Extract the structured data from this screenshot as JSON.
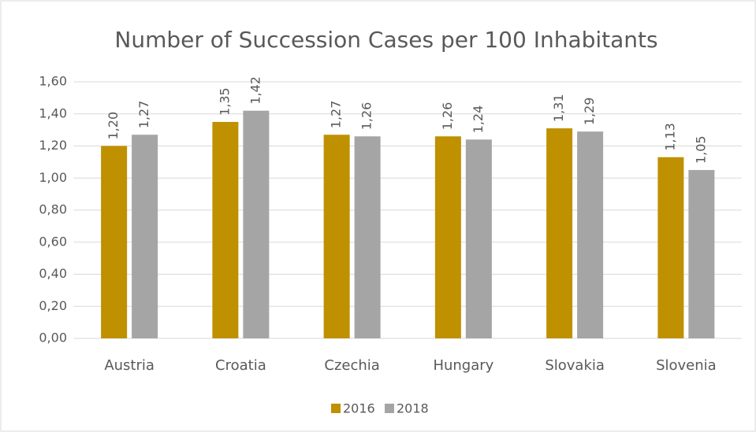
{
  "chart_data": {
    "type": "bar",
    "title": "Number of Succession Cases per 100 Inhabitants",
    "categories": [
      "Austria",
      "Croatia",
      "Czechia",
      "Hungary",
      "Slovakia",
      "Slovenia"
    ],
    "series": [
      {
        "name": "2016",
        "color": "#bf9000",
        "values": [
          1.2,
          1.35,
          1.27,
          1.26,
          1.31,
          1.13
        ],
        "value_labels": [
          "1,20",
          "1,35",
          "1,27",
          "1,26",
          "1,31",
          "1,13"
        ]
      },
      {
        "name": "2018",
        "color": "#a5a5a5",
        "values": [
          1.27,
          1.42,
          1.26,
          1.24,
          1.29,
          1.05
        ],
        "value_labels": [
          "1,27",
          "1,42",
          "1,26",
          "1,24",
          "1,29",
          "1,05"
        ]
      }
    ],
    "ylim": [
      0,
      1.6
    ],
    "yticks": [
      {
        "value": 0,
        "label": "0,00"
      },
      {
        "value": 0.2,
        "label": "0,20"
      },
      {
        "value": 0.4,
        "label": "0,40"
      },
      {
        "value": 0.6,
        "label": "0,60"
      },
      {
        "value": 0.8,
        "label": "0,80"
      },
      {
        "value": 1.0,
        "label": "1,00"
      },
      {
        "value": 1.2,
        "label": "1,20"
      },
      {
        "value": 1.4,
        "label": "1,40"
      },
      {
        "value": 1.6,
        "label": "1,60"
      }
    ],
    "grid": true,
    "legend": "bottom"
  }
}
